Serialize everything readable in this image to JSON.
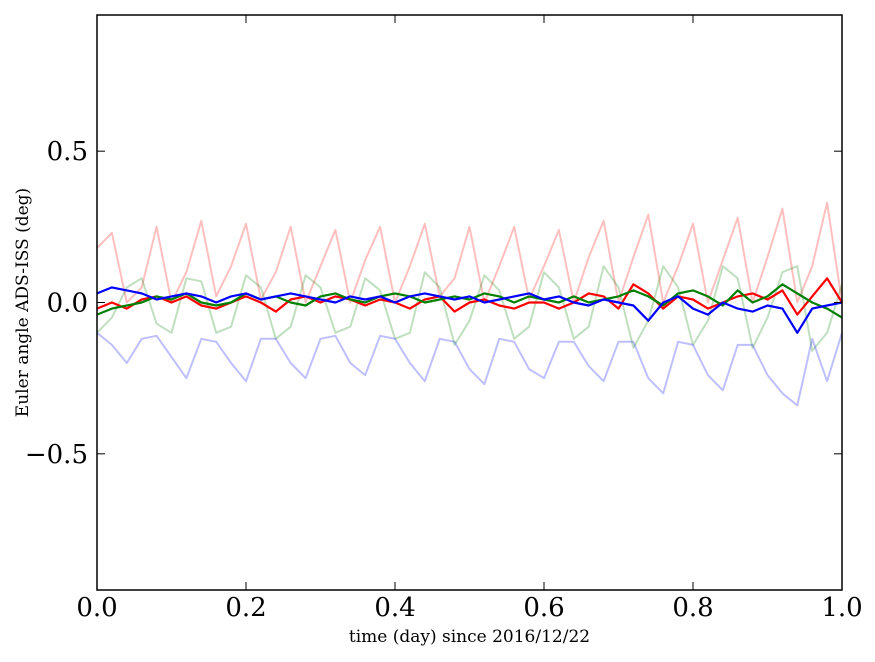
{
  "chart_data": {
    "type": "line",
    "title": "",
    "xlabel": "time (day) since 2016/12/22",
    "ylabel": "Euler angle ADS-ISS (deg)",
    "xlim": [
      0.0,
      1.0
    ],
    "ylim": [
      -0.95,
      0.95
    ],
    "x_ticks": [
      0.0,
      0.2,
      0.4,
      0.6,
      0.8,
      1.0
    ],
    "x_tick_labels": [
      "0.0",
      "0.2",
      "0.4",
      "0.6",
      "0.8",
      "1.0"
    ],
    "y_ticks": [
      0.5,
      0.0,
      -0.5
    ],
    "y_tick_labels": [
      "0.5",
      "0.0",
      "−0.5"
    ],
    "grid": false,
    "legend": "none",
    "x": [
      0.0,
      0.02,
      0.04,
      0.06,
      0.08,
      0.1,
      0.12,
      0.14,
      0.16,
      0.18,
      0.2,
      0.22,
      0.24,
      0.26,
      0.28,
      0.3,
      0.32,
      0.34,
      0.36,
      0.38,
      0.4,
      0.42,
      0.44,
      0.46,
      0.48,
      0.5,
      0.52,
      0.54,
      0.56,
      0.58,
      0.6,
      0.62,
      0.64,
      0.66,
      0.68,
      0.7,
      0.72,
      0.74,
      0.76,
      0.78,
      0.8,
      0.82,
      0.84,
      0.86,
      0.88,
      0.9,
      0.92,
      0.94,
      0.96,
      0.98,
      1.0
    ],
    "series": [
      {
        "color": "#ff0000",
        "opacity": 1.0,
        "values": [
          -0.02,
          0.0,
          -0.02,
          0.01,
          0.02,
          0.0,
          0.02,
          -0.01,
          -0.02,
          0.0,
          0.02,
          0.0,
          -0.03,
          0.01,
          0.02,
          0.0,
          0.02,
          0.01,
          -0.01,
          0.01,
          0.0,
          -0.02,
          0.01,
          0.02,
          -0.03,
          0.0,
          0.01,
          -0.01,
          -0.02,
          0.0,
          0.0,
          -0.02,
          0.0,
          0.03,
          0.02,
          -0.02,
          0.06,
          0.03,
          -0.02,
          0.02,
          0.01,
          -0.02,
          0.0,
          0.02,
          0.03,
          0.01,
          0.04,
          -0.04,
          0.02,
          0.08,
          0.0
        ]
      },
      {
        "color": "#008000",
        "opacity": 1.0,
        "values": [
          -0.04,
          -0.02,
          -0.01,
          0.0,
          0.02,
          0.01,
          0.03,
          0.0,
          -0.01,
          0.0,
          0.03,
          0.01,
          0.02,
          0.0,
          -0.01,
          0.02,
          0.03,
          0.01,
          0.0,
          0.02,
          0.03,
          0.02,
          0.0,
          0.01,
          0.02,
          0.01,
          0.03,
          0.02,
          0.0,
          0.02,
          0.01,
          0.0,
          0.02,
          0.0,
          0.01,
          0.02,
          0.04,
          0.02,
          -0.01,
          0.03,
          0.04,
          0.02,
          -0.01,
          0.04,
          0.0,
          0.02,
          0.06,
          0.03,
          0.0,
          -0.02,
          -0.05
        ]
      },
      {
        "color": "#0000ff",
        "opacity": 1.0,
        "values": [
          0.03,
          0.05,
          0.04,
          0.03,
          0.01,
          0.02,
          0.03,
          0.02,
          0.0,
          0.02,
          0.03,
          0.01,
          0.02,
          0.03,
          0.02,
          0.01,
          0.0,
          0.02,
          0.01,
          0.02,
          0.0,
          0.02,
          0.03,
          0.02,
          0.01,
          0.02,
          0.0,
          0.01,
          0.02,
          0.03,
          0.01,
          0.02,
          0.0,
          -0.01,
          0.01,
          0.0,
          -0.01,
          -0.06,
          0.0,
          0.02,
          -0.02,
          -0.04,
          0.0,
          -0.02,
          -0.03,
          -0.01,
          -0.02,
          -0.1,
          -0.02,
          -0.01,
          0.0
        ]
      },
      {
        "color": "#ff0000",
        "opacity": 0.25,
        "values": [
          0.18,
          0.23,
          0.0,
          0.05,
          0.25,
          0.0,
          0.1,
          0.27,
          0.02,
          0.12,
          0.26,
          0.01,
          0.1,
          0.25,
          0.0,
          0.12,
          0.24,
          0.0,
          0.14,
          0.25,
          0.0,
          0.12,
          0.26,
          0.02,
          0.08,
          0.25,
          0.0,
          0.12,
          0.25,
          0.01,
          0.12,
          0.24,
          0.0,
          0.15,
          0.27,
          0.0,
          0.15,
          0.29,
          0.0,
          0.12,
          0.26,
          0.0,
          0.14,
          0.28,
          0.0,
          0.15,
          0.31,
          0.0,
          0.12,
          0.33,
          0.0
        ]
      },
      {
        "color": "#008000",
        "opacity": 0.25,
        "values": [
          -0.1,
          -0.05,
          0.05,
          0.08,
          -0.07,
          -0.1,
          0.08,
          0.07,
          -0.1,
          -0.08,
          0.09,
          0.05,
          -0.12,
          -0.08,
          0.09,
          0.05,
          -0.1,
          -0.08,
          0.08,
          0.04,
          -0.12,
          -0.1,
          0.1,
          0.05,
          -0.14,
          -0.06,
          0.09,
          0.04,
          -0.12,
          -0.08,
          0.1,
          0.05,
          -0.12,
          -0.08,
          0.12,
          0.05,
          -0.15,
          -0.06,
          0.12,
          0.05,
          -0.14,
          -0.06,
          0.12,
          0.08,
          -0.15,
          -0.05,
          0.1,
          0.12,
          -0.16,
          -0.1,
          0.06
        ]
      },
      {
        "color": "#0000ff",
        "opacity": 0.25,
        "values": [
          -0.1,
          -0.14,
          -0.2,
          -0.12,
          -0.11,
          -0.18,
          -0.25,
          -0.12,
          -0.13,
          -0.2,
          -0.26,
          -0.12,
          -0.12,
          -0.2,
          -0.25,
          -0.12,
          -0.11,
          -0.2,
          -0.24,
          -0.11,
          -0.12,
          -0.2,
          -0.26,
          -0.12,
          -0.13,
          -0.22,
          -0.27,
          -0.12,
          -0.13,
          -0.22,
          -0.25,
          -0.13,
          -0.13,
          -0.21,
          -0.26,
          -0.13,
          -0.13,
          -0.25,
          -0.3,
          -0.13,
          -0.14,
          -0.24,
          -0.29,
          -0.14,
          -0.14,
          -0.24,
          -0.3,
          -0.34,
          -0.12,
          -0.26,
          -0.1
        ]
      }
    ]
  }
}
